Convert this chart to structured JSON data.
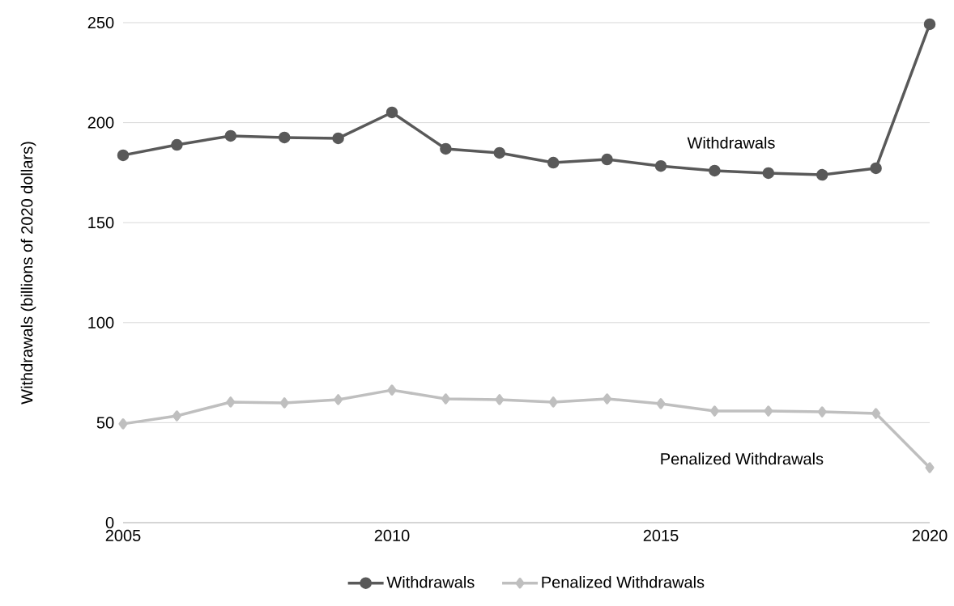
{
  "chart_data": {
    "type": "line",
    "ylabel": "Withdrawals (billions of 2020 dollars)",
    "x": [
      2005,
      2006,
      2007,
      2008,
      2009,
      2010,
      2011,
      2012,
      2013,
      2014,
      2015,
      2016,
      2017,
      2018,
      2019,
      2020
    ],
    "series": [
      {
        "name": "Withdrawals",
        "color": "#595959",
        "marker": "circle",
        "values": [
          183.7,
          188.9,
          193.4,
          192.6,
          192.2,
          205.1,
          186.9,
          184.9,
          180.0,
          181.6,
          178.3,
          176.0,
          174.8,
          173.9,
          177.2,
          249.2
        ]
      },
      {
        "name": "Penalized Withdrawals",
        "color": "#bfbfbf",
        "marker": "diamond",
        "values": [
          49.4,
          53.4,
          60.3,
          59.9,
          61.5,
          66.3,
          61.9,
          61.5,
          60.3,
          61.9,
          59.5,
          55.8,
          55.8,
          55.4,
          54.6,
          27.5
        ]
      }
    ],
    "annotations": [
      "Withdrawals",
      "Penalized Withdrawals"
    ],
    "xlim": [
      2005,
      2020
    ],
    "xticks": [
      2005,
      2010,
      2015,
      2020
    ],
    "ylim": [
      0,
      250
    ],
    "yticks": [
      0,
      50,
      100,
      150,
      200,
      250
    ],
    "grid": "y",
    "legend": "bottom",
    "line_style": "solid"
  }
}
